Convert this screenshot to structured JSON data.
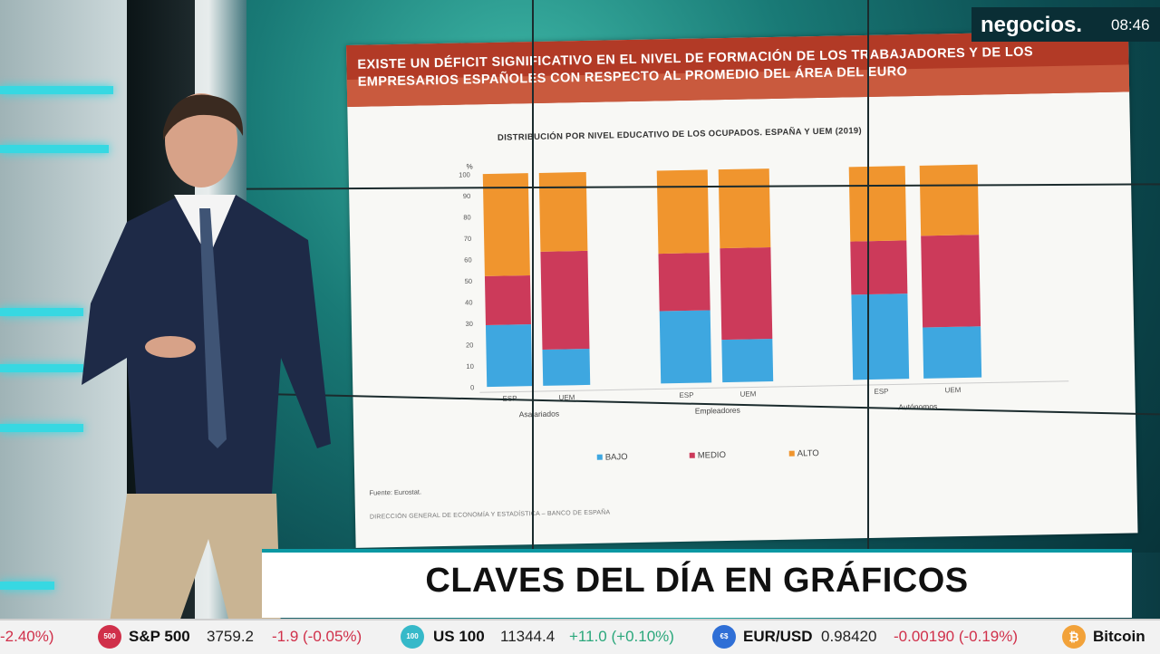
{
  "brand": {
    "logo": "negocios.",
    "clock": "08:46"
  },
  "slide": {
    "heading_line1": "EXISTE UN DÉFICIT SIGNIFICATIVO EN EL NIVEL DE FORMACIÓN DE LOS TRABAJADORES Y DE LOS",
    "heading_line2": "EMPRESARIOS ESPAÑOLES CON RESPECTO AL PROMEDIO DEL ÁREA DEL EURO",
    "source": "Fuente: Eurostat.",
    "footer": "DIRECCIÓN GENERAL DE ECONOMÍA Y ESTADÍSTICA – BANCO DE ESPAÑA"
  },
  "chart_data": {
    "type": "bar",
    "title": "DISTRIBUCIÓN POR NIVEL EDUCATIVO DE LOS OCUPADOS. ESPAÑA Y UEM (2019)",
    "yunit": "%",
    "ylim": [
      0,
      100
    ],
    "yticks": [
      "0",
      "10",
      "20",
      "30",
      "40",
      "50",
      "60",
      "70",
      "80",
      "90",
      "100"
    ],
    "stacked": true,
    "categories": [
      "ESP",
      "UEM",
      "ESP",
      "UEM",
      "ESP",
      "UEM"
    ],
    "groups": [
      "Asalariados",
      "Empleadores",
      "Autónomos"
    ],
    "series": [
      {
        "name": "BAJO",
        "color": "#3ea7e0",
        "values": [
          29,
          17,
          34,
          20,
          40,
          24
        ]
      },
      {
        "name": "MEDIO",
        "color": "#cc3a5a",
        "values": [
          23,
          46,
          27,
          43,
          25,
          43
        ]
      },
      {
        "name": "ALTO",
        "color": "#f0952e",
        "values": [
          48,
          37,
          39,
          37,
          35,
          33
        ]
      }
    ]
  },
  "lower_third": {
    "title": "CLAVES DEL DÍA EN GRÁFICOS"
  },
  "ticker": [
    {
      "badge": "",
      "badge_color": "#ffffff",
      "symbol": "",
      "price": "",
      "change": "-2.40%)",
      "trend": "neg"
    },
    {
      "badge": "500",
      "badge_color": "#d0304a",
      "symbol": "S&P 500",
      "price": "3759.2",
      "change": "-1.9 (-0.05%)",
      "trend": "neg"
    },
    {
      "badge": "100",
      "badge_color": "#36b9c9",
      "symbol": "US 100",
      "price": "11344.4",
      "change": "+11.0 (+0.10%)",
      "trend": "pos"
    },
    {
      "badge": "€$",
      "badge_color": "#2f6fd6",
      "symbol": "EUR/USD",
      "price": "0.98420",
      "change": "-0.00190 (-0.19%)",
      "trend": "neg"
    },
    {
      "badge": "₿",
      "badge_color": "#f2a23a",
      "symbol": "Bitcoin",
      "price": "",
      "change": "",
      "trend": "pos"
    }
  ]
}
